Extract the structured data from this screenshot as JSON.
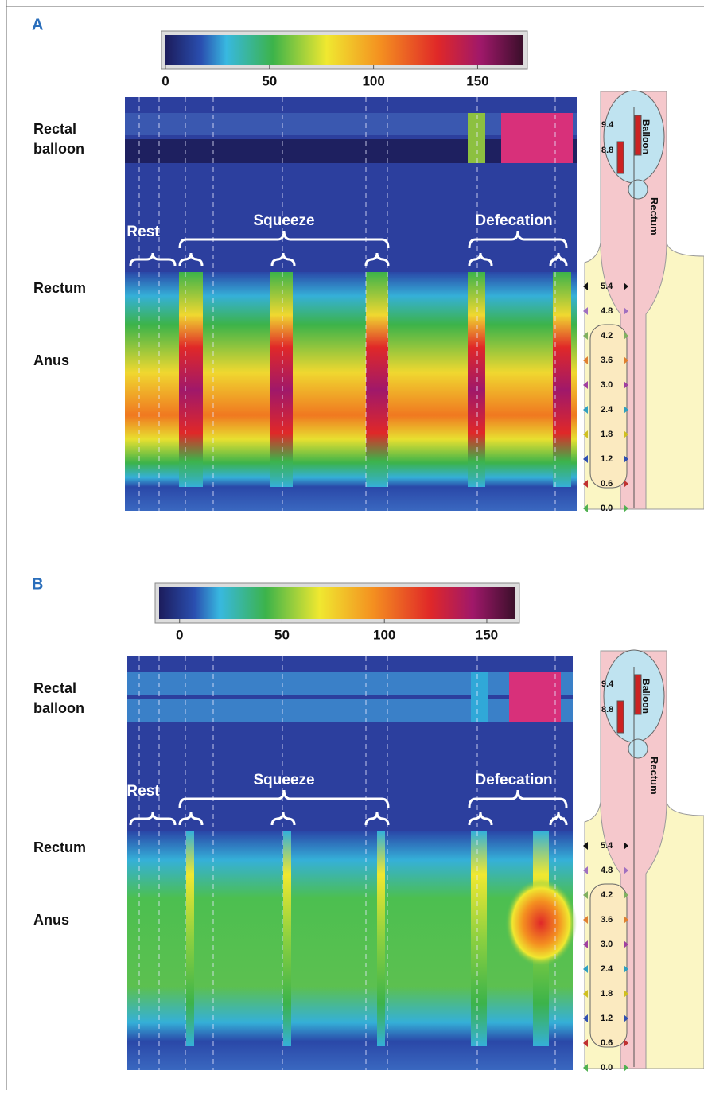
{
  "panels": [
    {
      "label": "A",
      "colorbar": {
        "lim": [
          0,
          172
        ],
        "ticks": [
          0,
          50,
          100,
          150
        ]
      },
      "balloon_label": "Rectal balloon",
      "rectum_label": "Rectum",
      "anus_label": "Anus",
      "phases": [
        "Rest",
        "Squeeze",
        "Defecation"
      ],
      "balloon_sensors": [
        "9.4",
        "8.8"
      ],
      "balloon_text": "Balloon",
      "anatomy_label": "Rectum",
      "sensors": [
        "5.4",
        "4.8",
        "4.2",
        "3.6",
        "3.0",
        "2.4",
        "1.8",
        "1.2",
        "0.6",
        "0.0"
      ]
    },
    {
      "label": "B",
      "colorbar": {
        "lim": [
          -10,
          164
        ],
        "ticks": [
          0,
          50,
          100,
          150
        ]
      },
      "balloon_label": "Rectal balloon",
      "rectum_label": "Rectum",
      "anus_label": "Anus",
      "phases": [
        "Rest",
        "Squeeze",
        "Defecation"
      ],
      "balloon_sensors": [
        "9.4",
        "8.8"
      ],
      "balloon_text": "Balloon",
      "anatomy_label": "Rectum",
      "sensors": [
        "5.4",
        "4.8",
        "4.2",
        "3.6",
        "3.0",
        "2.4",
        "1.8",
        "1.2",
        "0.6",
        "0.0"
      ]
    }
  ]
}
